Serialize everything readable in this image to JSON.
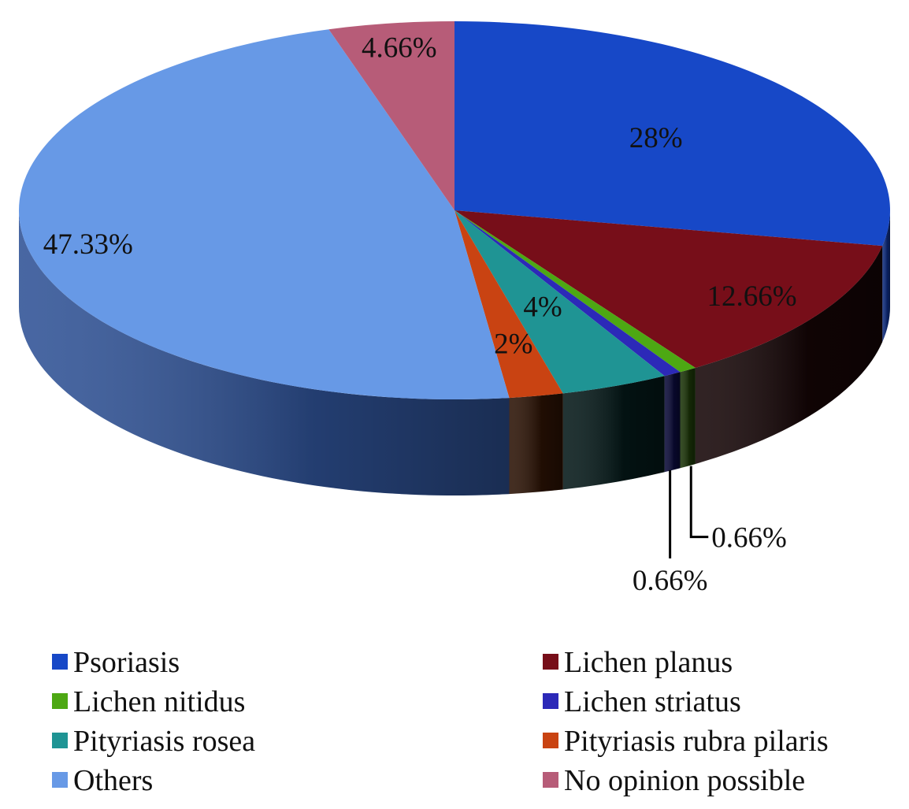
{
  "chart_data": {
    "type": "pie",
    "style": "3d",
    "title": "",
    "start_angle_deg": -90,
    "slices": [
      {
        "name": "Psoriasis",
        "value": 28,
        "label": "28%",
        "color": "#1748C7",
        "side": "#0E2C80"
      },
      {
        "name": "Lichen planus",
        "value": 12.66,
        "label": "12.66%",
        "color": "#770E19",
        "side": "#150506"
      },
      {
        "name": "Lichen nitidus",
        "value": 0.66,
        "label": "0.66%",
        "color": "#4DA813",
        "side": "#1B3508"
      },
      {
        "name": "Lichen striatus",
        "value": 0.66,
        "label": "0.66%",
        "color": "#2C29B8",
        "side": "#0A0A38"
      },
      {
        "name": "Pityriasis rosea",
        "value": 4,
        "label": "4%",
        "color": "#1F9494",
        "side": "#041818"
      },
      {
        "name": "Pityriasis rubra pilaris",
        "value": 2,
        "label": "2%",
        "color": "#C94312",
        "side": "#2B1204"
      },
      {
        "name": "Others",
        "value": 47.33,
        "label": "47.33%",
        "color": "#6799E6",
        "side": "#2F5296"
      },
      {
        "name": "No opinion possible",
        "value": 4.66,
        "label": "4.66%",
        "color": "#B75C78",
        "side": "#4A2230"
      }
    ],
    "legend": {
      "placement": "bottom",
      "columns": 2
    }
  }
}
